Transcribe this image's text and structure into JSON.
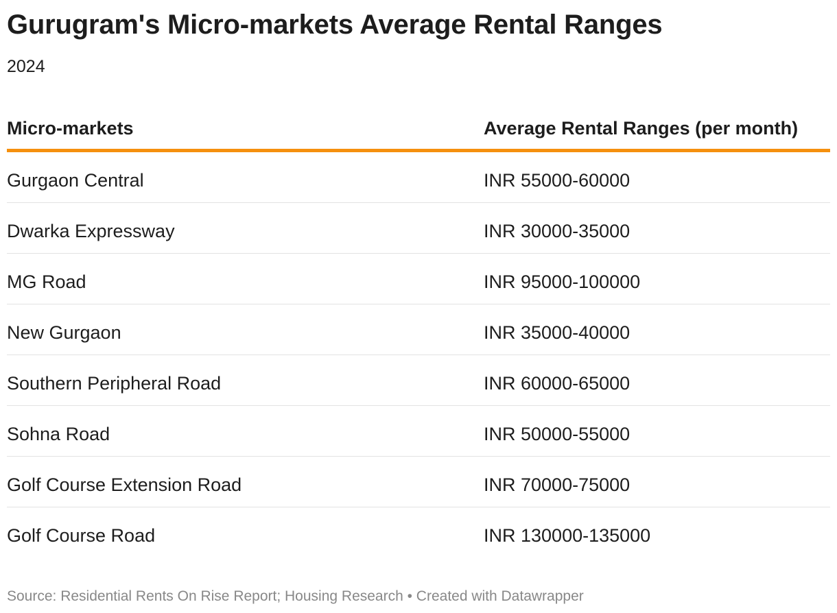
{
  "chart_data": {
    "type": "table",
    "title": "Gurugram's Micro-markets Average Rental Ranges",
    "subtitle": "2024",
    "columns": [
      "Micro-markets",
      "Average Rental Ranges (per month)"
    ],
    "rows": [
      {
        "market": "Gurgaon Central",
        "range": "INR 55000-60000"
      },
      {
        "market": "Dwarka Expressway",
        "range": "INR 30000-35000"
      },
      {
        "market": "MG Road",
        "range": "INR 95000-100000"
      },
      {
        "market": "New Gurgaon",
        "range": "INR 35000-40000"
      },
      {
        "market": "Southern Peripheral Road",
        "range": "INR 60000-65000"
      },
      {
        "market": "Sohna Road",
        "range": "INR 50000-55000"
      },
      {
        "market": "Golf Course Extension Road",
        "range": "INR 70000-75000"
      },
      {
        "market": "Golf Course Road",
        "range": "INR 130000-135000"
      }
    ],
    "header_rule_color": "#f5900e"
  },
  "footer": {
    "text": "Source: Residential Rents On Rise Report; Housing Research • Created with Datawrapper"
  }
}
